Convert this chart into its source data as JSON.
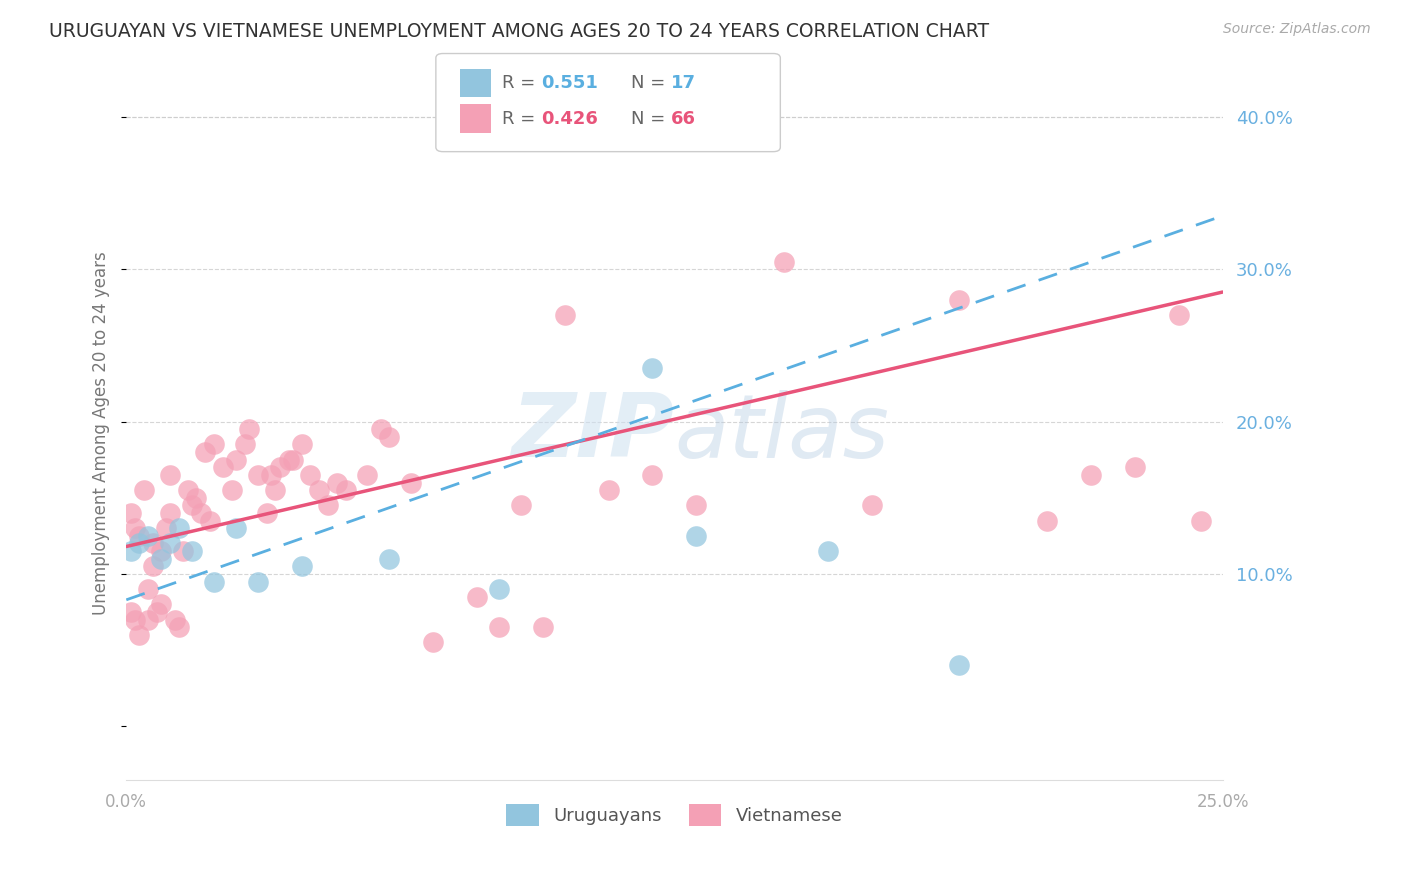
{
  "title": "URUGUAYAN VS VIETNAMESE UNEMPLOYMENT AMONG AGES 20 TO 24 YEARS CORRELATION CHART",
  "source": "Source: ZipAtlas.com",
  "ylabel": "Unemployment Among Ages 20 to 24 years",
  "xlim": [
    0.0,
    0.25
  ],
  "ylim": [
    -0.035,
    0.42
  ],
  "xticks": [
    0.0,
    0.05,
    0.1,
    0.15,
    0.2,
    0.25
  ],
  "xtick_labels": [
    "0.0%",
    "",
    "",
    "",
    "",
    "25.0%"
  ],
  "yticks_right": [
    0.1,
    0.2,
    0.3,
    0.4
  ],
  "ytick_labels_right": [
    "10.0%",
    "20.0%",
    "30.0%",
    "40.0%"
  ],
  "uruguayan_color": "#92c5de",
  "vietnamese_color": "#f4a0b5",
  "uruguayan_line_color": "#5aafe0",
  "vietnamese_line_color": "#e8547a",
  "grid_color": "#cccccc",
  "title_color": "#333333",
  "axis_label_color": "#777777",
  "right_tick_color": "#6ab0e0",
  "watermark_color": "#cde0f0",
  "uruguayan_R": 0.551,
  "uruguayan_N": 17,
  "vietnamese_R": 0.426,
  "vietnamese_N": 66,
  "uruguayan_x": [
    0.001,
    0.003,
    0.005,
    0.008,
    0.01,
    0.012,
    0.015,
    0.02,
    0.025,
    0.03,
    0.04,
    0.06,
    0.085,
    0.12,
    0.13,
    0.16,
    0.19
  ],
  "uruguayan_y": [
    0.115,
    0.12,
    0.125,
    0.11,
    0.12,
    0.13,
    0.115,
    0.095,
    0.13,
    0.095,
    0.105,
    0.11,
    0.09,
    0.235,
    0.125,
    0.115,
    0.04
  ],
  "vietnamese_x": [
    0.001,
    0.001,
    0.002,
    0.002,
    0.003,
    0.003,
    0.004,
    0.005,
    0.005,
    0.006,
    0.006,
    0.007,
    0.008,
    0.008,
    0.009,
    0.01,
    0.01,
    0.011,
    0.012,
    0.013,
    0.014,
    0.015,
    0.016,
    0.017,
    0.018,
    0.019,
    0.02,
    0.022,
    0.024,
    0.025,
    0.027,
    0.028,
    0.03,
    0.032,
    0.033,
    0.034,
    0.035,
    0.037,
    0.038,
    0.04,
    0.042,
    0.044,
    0.046,
    0.048,
    0.05,
    0.055,
    0.058,
    0.06,
    0.065,
    0.07,
    0.08,
    0.085,
    0.09,
    0.095,
    0.1,
    0.11,
    0.12,
    0.13,
    0.15,
    0.17,
    0.19,
    0.21,
    0.22,
    0.23,
    0.24,
    0.245
  ],
  "vietnamese_y": [
    0.14,
    0.075,
    0.13,
    0.07,
    0.125,
    0.06,
    0.155,
    0.09,
    0.07,
    0.105,
    0.12,
    0.075,
    0.115,
    0.08,
    0.13,
    0.165,
    0.14,
    0.07,
    0.065,
    0.115,
    0.155,
    0.145,
    0.15,
    0.14,
    0.18,
    0.135,
    0.185,
    0.17,
    0.155,
    0.175,
    0.185,
    0.195,
    0.165,
    0.14,
    0.165,
    0.155,
    0.17,
    0.175,
    0.175,
    0.185,
    0.165,
    0.155,
    0.145,
    0.16,
    0.155,
    0.165,
    0.195,
    0.19,
    0.16,
    0.055,
    0.085,
    0.065,
    0.145,
    0.065,
    0.27,
    0.155,
    0.165,
    0.145,
    0.305,
    0.145,
    0.28,
    0.135,
    0.165,
    0.17,
    0.27,
    0.135
  ],
  "uru_line_x0": 0.0,
  "uru_line_x1": 0.25,
  "uru_line_y0": 0.083,
  "uru_line_y1": 0.335,
  "vie_line_x0": 0.0,
  "vie_line_x1": 0.25,
  "vie_line_y0": 0.118,
  "vie_line_y1": 0.285
}
